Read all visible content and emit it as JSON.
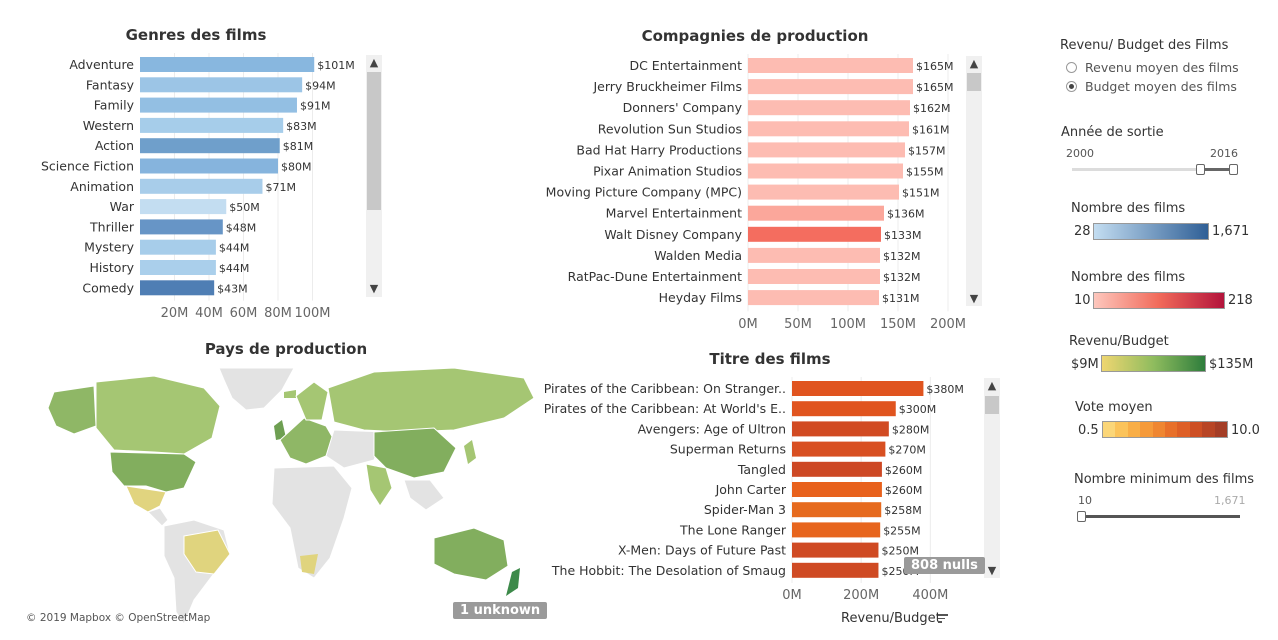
{
  "genres": {
    "title": "Genres des films",
    "chart_data": {
      "type": "bar",
      "orientation": "horizontal",
      "categories": [
        "Adventure",
        "Fantasy",
        "Family",
        "Western",
        "Action",
        "Science Fiction",
        "Animation",
        "War",
        "Thriller",
        "Mystery",
        "History",
        "Comedy"
      ],
      "values": [
        101,
        94,
        91,
        83,
        81,
        80,
        71,
        50,
        48,
        44,
        44,
        43
      ],
      "value_labels": [
        "$101M",
        "$94M",
        "$91M",
        "$83M",
        "$81M",
        "$80M",
        "$71M",
        "$50M",
        "$48M",
        "$44M",
        "$44M",
        "$43M"
      ],
      "colors": [
        "#88b7df",
        "#9cc5e6",
        "#93bfe3",
        "#a6cdea",
        "#6f9fcb",
        "#86b4dd",
        "#a8cdea",
        "#c3ddf1",
        "#6795c6",
        "#a7cdea",
        "#aacfeb",
        "#4f7eb4"
      ],
      "x_ticks": [
        "20M",
        "40M",
        "60M",
        "80M",
        "100M"
      ],
      "xlim": [
        0,
        120
      ]
    }
  },
  "companies": {
    "title": "Compagnies de production",
    "chart_data": {
      "type": "bar",
      "orientation": "horizontal",
      "categories": [
        "DC Entertainment",
        "Jerry Bruckheimer Films",
        "Donners' Company",
        "Revolution Sun Studios",
        "Bad Hat Harry Productions",
        "Pixar Animation Studios",
        "Moving Picture Company (MPC)",
        "Marvel Entertainment",
        "Walt Disney Company",
        "Walden Media",
        "RatPac-Dune Entertainment",
        "Heyday Films"
      ],
      "values": [
        165,
        165,
        162,
        161,
        157,
        155,
        151,
        136,
        133,
        132,
        132,
        131
      ],
      "value_labels": [
        "$165M",
        "$165M",
        "$162M",
        "$161M",
        "$157M",
        "$155M",
        "$151M",
        "$136M",
        "$133M",
        "$132M",
        "$132M",
        "$131M"
      ],
      "colors": [
        "#fdbcb2",
        "#fdbcb2",
        "#fdbcb2",
        "#fdbcb2",
        "#fdbcb2",
        "#fdbcb2",
        "#fdbcb2",
        "#fba79b",
        "#f46d5f",
        "#fdbcb2",
        "#fdbcb2",
        "#fdbcb2"
      ],
      "x_ticks": [
        "0M",
        "50M",
        "100M",
        "150M",
        "200M"
      ],
      "xlim": [
        0,
        200
      ]
    }
  },
  "titles": {
    "title": "Titre des films",
    "xlabel": "Revenu/Budget",
    "nulls_badge": "808 nulls",
    "chart_data": {
      "type": "bar",
      "orientation": "horizontal",
      "categories": [
        "Pirates of the Caribbean: On Stranger..",
        "Pirates of the Caribbean: At World's E..",
        "Avengers: Age of Ultron",
        "Superman Returns",
        "Tangled",
        "John Carter",
        "Spider-Man 3",
        "The Lone Ranger",
        "X-Men: Days of Future Past",
        "The Hobbit: The Desolation of Smaug"
      ],
      "values": [
        380,
        300,
        280,
        270,
        260,
        260,
        258,
        255,
        250,
        250
      ],
      "value_labels": [
        "$380M",
        "$300M",
        "$280M",
        "$270M",
        "$260M",
        "$260M",
        "$258M",
        "$255M",
        "$250M",
        "$250M"
      ],
      "colors": [
        "#e0541f",
        "#e0541f",
        "#d14a22",
        "#d84f21",
        "#cd4824",
        "#e8611c",
        "#e66a1e",
        "#e7651d",
        "#cf4a23",
        "#cf4a23"
      ],
      "x_ticks": [
        "0M",
        "200M",
        "400M"
      ],
      "xlim": [
        0,
        480
      ]
    }
  },
  "map": {
    "title": "Pays de production",
    "attribution": "© 2019 Mapbox © OpenStreetMap",
    "unknown_badge": "1 unknown"
  },
  "controls": {
    "revenu_budget_title": "Revenu/ Budget des Films",
    "radio_options": [
      "Revenu moyen des films",
      "Budget moyen des films"
    ],
    "selected_radio": 1,
    "annee_title": "Année de sortie",
    "annee_min": "2000",
    "annee_max": "2016",
    "legends": [
      {
        "title": "Nombre des films",
        "min": "28",
        "max": "1,671"
      },
      {
        "title": "Nombre des films",
        "min": "10",
        "max": "218"
      },
      {
        "title": "Revenu/Budget",
        "min": "$9M",
        "max": "$135M"
      },
      {
        "title": "Vote moyen",
        "min": "0.5",
        "max": "10.0"
      }
    ],
    "min_films_title": "Nombre minimum des films",
    "min_films_min": "10",
    "min_films_max": "1,671"
  }
}
